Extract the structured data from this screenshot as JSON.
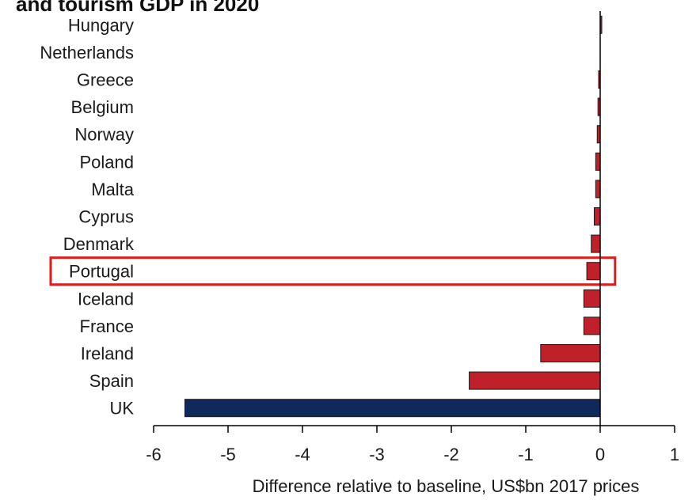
{
  "chart_data": {
    "type": "bar",
    "orientation": "horizontal",
    "title": "and tourism GDP in 2020",
    "xlabel": "Difference relative to baseline, US$bn 2017 prices",
    "ylabel": "",
    "xlim": [
      -6,
      1
    ],
    "xticks": [
      "-6",
      "-5",
      "-4",
      "-3",
      "-2",
      "-1",
      "0",
      "1"
    ],
    "grid": false,
    "legend": "none",
    "categories": [
      "Hungary",
      "Netherlands",
      "Greece",
      "Belgium",
      "Norway",
      "Poland",
      "Malta",
      "Cyprus",
      "Denmark",
      "Portugal",
      "Iceland",
      "France",
      "Ireland",
      "Spain",
      "UK"
    ],
    "values": [
      0.02,
      0.0,
      -0.02,
      -0.03,
      -0.04,
      -0.06,
      -0.06,
      -0.08,
      -0.12,
      -0.18,
      -0.22,
      -0.22,
      -0.8,
      -1.76,
      -5.58
    ],
    "colors": {
      "default": "#c0202a",
      "highlight_bar": "#0f2a5a",
      "highlight_box": "#e21a1a"
    },
    "highlight_bar": "UK",
    "highlight_box": "Portugal"
  }
}
